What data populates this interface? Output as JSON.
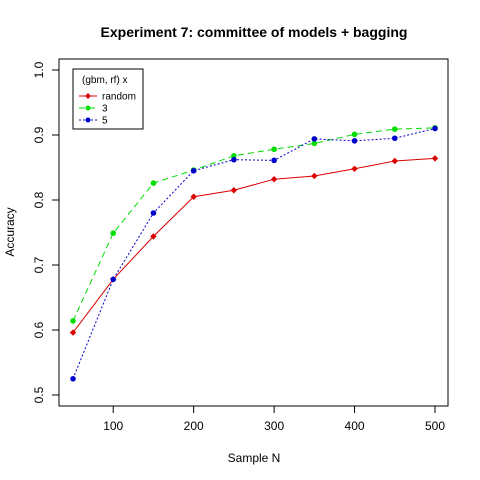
{
  "chart_data": {
    "type": "line",
    "title": "Experiment 7: committee of models + bagging",
    "xlabel": "Sample N",
    "ylabel": "Accuracy",
    "xlim": [
      50,
      500
    ],
    "ylim": [
      0.5,
      1.0
    ],
    "x_ticks": [
      100,
      200,
      300,
      400,
      500
    ],
    "y_ticks": [
      0.5,
      0.6,
      0.7,
      0.8,
      0.9,
      1.0
    ],
    "x_tick_labels": [
      "100",
      "200",
      "300",
      "400",
      "500"
    ],
    "y_tick_labels": [
      "0.5",
      "0.6",
      "0.7",
      "0.8",
      "0.9",
      "1.0"
    ],
    "grid": false,
    "legend": {
      "title": "(gbm, rf) x",
      "position": "top-left"
    },
    "x": [
      50,
      100,
      150,
      200,
      250,
      300,
      350,
      400,
      450,
      500
    ],
    "series": [
      {
        "name": "random",
        "color": "#dd0000",
        "line_style": "solid",
        "marker": "diamond",
        "values": [
          0.596,
          0.678,
          0.744,
          0.805,
          0.815,
          0.832,
          0.837,
          0.848,
          0.86,
          0.864
        ]
      },
      {
        "name": "3",
        "color": "#00dd00",
        "line_style": "dashed",
        "marker": "circle",
        "values": [
          0.614,
          0.749,
          0.826,
          0.846,
          0.868,
          0.878,
          0.887,
          0.901,
          0.909,
          0.911
        ]
      },
      {
        "name": "5",
        "color": "#0000cc",
        "line_style": "dotted",
        "marker": "circle",
        "values": [
          0.525,
          0.678,
          0.78,
          0.845,
          0.862,
          0.861,
          0.894,
          0.891,
          0.895,
          0.91
        ]
      }
    ]
  }
}
